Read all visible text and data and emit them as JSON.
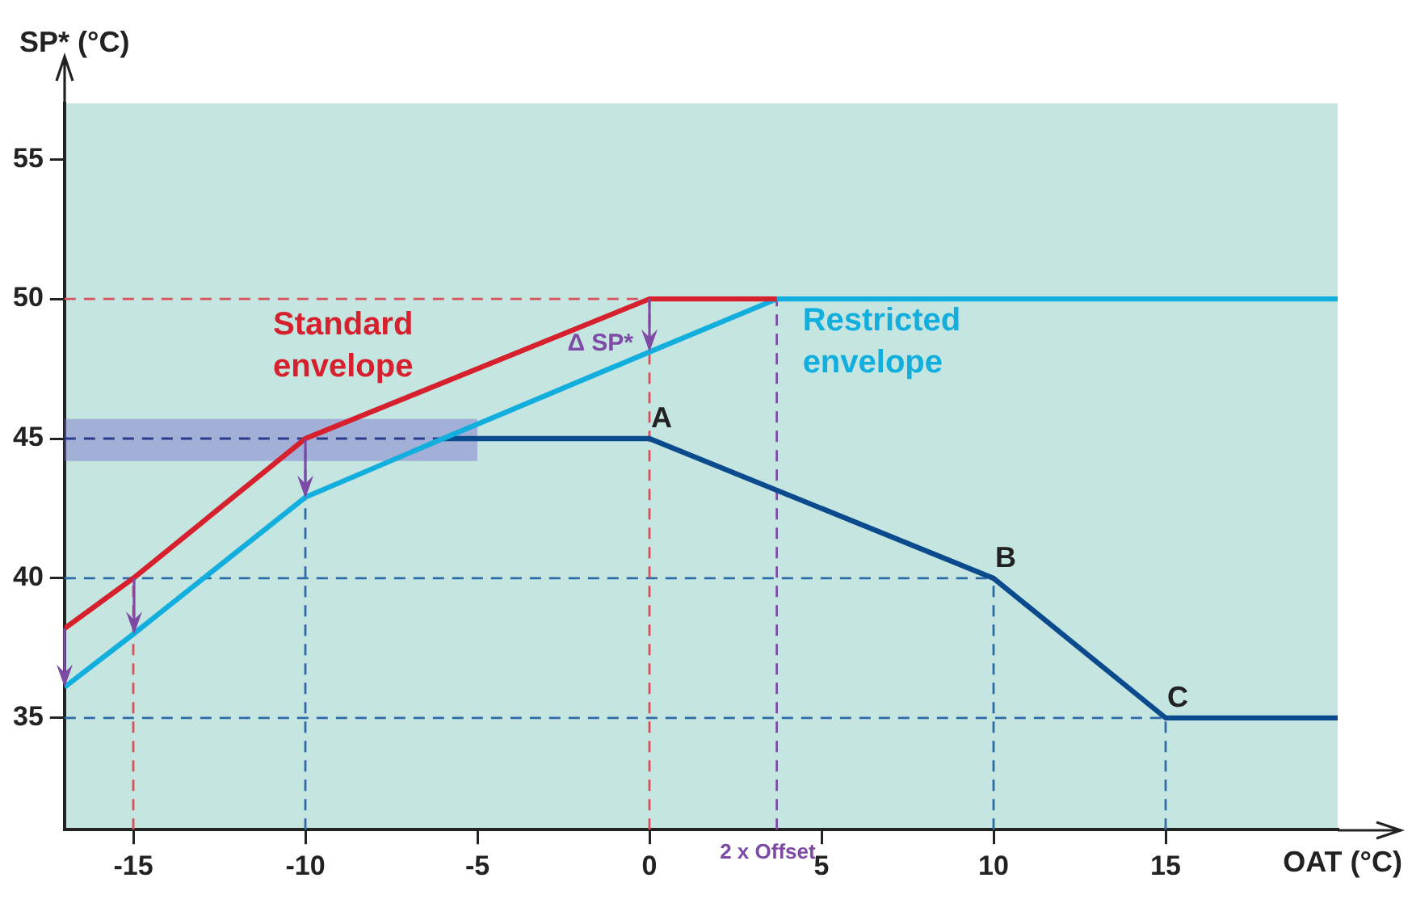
{
  "chart_data": {
    "type": "line",
    "xlabel": "OAT (°C)",
    "ylabel": "SP* (°C)",
    "xlim": [
      -17,
      20
    ],
    "ylim": [
      31,
      57
    ],
    "xticks": [
      -15,
      -10,
      -5,
      0,
      5,
      10,
      15
    ],
    "yticks": [
      35,
      40,
      45,
      50,
      55
    ],
    "grid": false,
    "legend": false,
    "marker": "none",
    "series": [
      {
        "name": "Standard envelope",
        "color": "#d6202e",
        "x": [
          -17,
          -15,
          -10,
          0,
          3.7
        ],
        "values": [
          38.2,
          40,
          45,
          50,
          50
        ]
      },
      {
        "name": "Restricted envelope",
        "color": "#12aede",
        "x": [
          -17,
          -15,
          -10,
          -6,
          0,
          3.7,
          20
        ],
        "values": [
          36.1,
          38,
          42.9,
          45,
          48.1,
          50,
          50
        ]
      },
      {
        "color": "#0b4a8c",
        "x": [
          -6,
          0,
          10,
          15,
          20
        ],
        "values": [
          45,
          45,
          40,
          35,
          35
        ]
      },
      {
        "color": "#2a3a8c",
        "x": [
          -17,
          -5
        ],
        "values": [
          45,
          45
        ],
        "lower": [
          44.2,
          44.2
        ],
        "upper": [
          45.7,
          45.7
        ],
        "line_style": "dashed"
      },
      {
        "color": "#d9505a",
        "x": [
          -17,
          0
        ],
        "values": [
          50,
          50
        ],
        "line_style": "dashed"
      },
      {
        "color": "#d9505a",
        "x": [
          0,
          0
        ],
        "values": [
          31,
          50
        ],
        "line_style": "dashed"
      },
      {
        "color": "#d9505a",
        "x": [
          -15,
          -15
        ],
        "values": [
          31,
          40
        ],
        "line_style": "dashed"
      },
      {
        "color": "#2f6aa8",
        "x": [
          -17,
          10
        ],
        "values": [
          40,
          40
        ],
        "line_style": "dashed"
      },
      {
        "color": "#2f6aa8",
        "x": [
          -17,
          15
        ],
        "values": [
          35,
          35
        ],
        "line_style": "dashed"
      },
      {
        "color": "#2f6aa8",
        "x": [
          -10,
          -10
        ],
        "values": [
          31,
          45
        ],
        "line_style": "dashed"
      },
      {
        "color": "#2f6aa8",
        "x": [
          10,
          10
        ],
        "values": [
          31,
          40
        ],
        "line_style": "dashed"
      },
      {
        "color": "#2f6aa8",
        "x": [
          15,
          15
        ],
        "values": [
          31,
          35
        ],
        "line_style": "dashed"
      },
      {
        "color": "#7d4aa5",
        "x": [
          3.7,
          3.7
        ],
        "values": [
          31,
          50
        ],
        "line_style": "dashed"
      }
    ],
    "annotations": [
      {
        "text": "A",
        "x": 0,
        "y": 45
      },
      {
        "text": "B",
        "x": 10,
        "y": 40
      },
      {
        "text": "C",
        "x": 15,
        "y": 35
      },
      "Δ SP*",
      "2 x Offset"
    ]
  }
}
